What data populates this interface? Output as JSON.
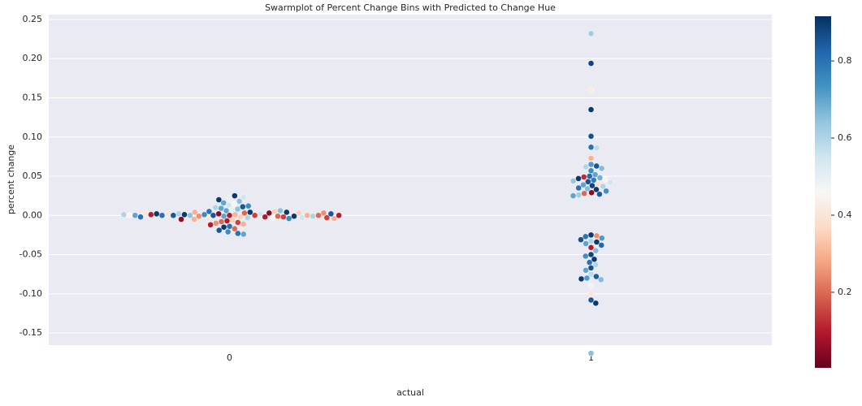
{
  "chart_data": {
    "type": "swarm",
    "title": "Swarmplot of Percent Change Bins with Predicted to Change Hue",
    "x_label": "actual",
    "y_label": "percent change",
    "categories": [
      "0",
      "1"
    ],
    "groups": [
      {
        "values": [
          0.0,
          0.001,
          -0.001,
          0.002,
          -0.002,
          0.0,
          0.003,
          -0.003,
          0.004,
          -0.004,
          0.0,
          0.001,
          -0.001,
          0.002,
          -0.002,
          0.005,
          -0.005,
          0.0,
          0.003,
          -0.003,
          0.001,
          -0.001,
          0.006,
          -0.006,
          0.002,
          -0.002,
          0.0,
          0.004,
          -0.004,
          0.007,
          -0.007,
          0.001,
          -0.001,
          0.008,
          -0.008,
          0.0,
          0.003,
          -0.003,
          0.009,
          -0.009,
          0.002,
          0.01,
          -0.01,
          0.011,
          -0.011,
          0.012,
          -0.012,
          0.013,
          -0.014,
          0.015,
          -0.015,
          0.016,
          -0.017,
          0.018,
          -0.019,
          0.02,
          -0.021,
          0.022,
          -0.023,
          0.025,
          -0.024,
          0.023,
          0.0,
          0.001,
          -0.001,
          0.002,
          0.0,
          -0.002,
          0.005,
          -0.005,
          0.0,
          0.003,
          0.004,
          -0.003,
          0.006,
          0.0,
          0.002,
          -0.004,
          0.001,
          0.0
        ],
        "hue": [
          0.1,
          0.3,
          0.7,
          0.05,
          0.35,
          0.85,
          0.2,
          0.6,
          0.9,
          0.4,
          0.15,
          0.75,
          0.25,
          0.55,
          0.1,
          0.8,
          0.3,
          0.65,
          0.05,
          0.45,
          0.9,
          0.2,
          0.7,
          0.35,
          0.6,
          0.15,
          0.85,
          0.3,
          0.75,
          0.5,
          0.1,
          0.4,
          0.9,
          0.65,
          0.2,
          0.8,
          0.35,
          0.55,
          0.7,
          0.15,
          0.9,
          0.6,
          0.25,
          0.85,
          0.3,
          0.75,
          0.1,
          0.55,
          0.8,
          0.45,
          0.9,
          0.7,
          0.2,
          0.65,
          0.85,
          0.9,
          0.75,
          0.5,
          0.8,
          0.9,
          0.7,
          0.55,
          0.3,
          0.1,
          0.6,
          0.4,
          0.2,
          0.8,
          0.35,
          0.05,
          0.7,
          0.25,
          0.9,
          0.15,
          0.65,
          0.45,
          0.85,
          0.3,
          0.6,
          0.1
        ]
      },
      {
        "values": [
          0.232,
          0.194,
          0.16,
          0.135,
          0.101,
          0.087,
          0.086,
          0.073,
          0.065,
          0.063,
          0.062,
          0.06,
          0.057,
          0.052,
          0.05,
          0.049,
          0.048,
          0.047,
          0.046,
          0.045,
          0.044,
          0.043,
          0.042,
          0.04,
          0.039,
          0.038,
          0.037,
          0.035,
          0.034,
          0.033,
          0.031,
          0.029,
          0.028,
          0.027,
          0.026,
          0.025,
          -0.025,
          -0.026,
          -0.027,
          -0.029,
          -0.031,
          -0.033,
          -0.034,
          -0.036,
          -0.038,
          -0.041,
          -0.045,
          -0.05,
          -0.052,
          -0.056,
          -0.06,
          -0.063,
          -0.067,
          -0.07,
          -0.075,
          -0.078,
          -0.08,
          -0.081,
          -0.082,
          -0.09,
          -0.1,
          -0.108,
          -0.112,
          -0.176
        ],
        "hue": [
          0.62,
          0.88,
          0.42,
          0.9,
          0.86,
          0.8,
          0.58,
          0.3,
          0.72,
          0.85,
          0.6,
          0.66,
          0.75,
          0.7,
          0.82,
          0.12,
          0.68,
          0.9,
          0.45,
          0.78,
          0.64,
          0.86,
          0.55,
          0.38,
          0.7,
          0.88,
          0.6,
          0.8,
          0.66,
          0.9,
          0.74,
          0.05,
          0.2,
          0.84,
          0.62,
          0.7,
          0.9,
          0.25,
          0.8,
          0.72,
          0.86,
          0.6,
          0.9,
          0.7,
          0.82,
          0.1,
          0.66,
          0.88,
          0.74,
          0.9,
          0.8,
          0.6,
          0.86,
          0.7,
          0.58,
          0.84,
          0.72,
          0.9,
          0.66,
          0.48,
          0.4,
          0.85,
          0.9,
          0.65
        ]
      }
    ],
    "ylim": [
      -0.1655,
      0.2562
    ],
    "yticks": [
      {
        "value": -0.15,
        "label": "-0.15"
      },
      {
        "value": -0.1,
        "label": "-0.10"
      },
      {
        "value": -0.05,
        "label": "-0.05"
      },
      {
        "value": 0,
        "label": "0.00"
      },
      0.05,
      {
        "value": 0.1,
        "label": "0.10"
      },
      0.15,
      {
        "value": 0.2,
        "label": "0.20"
      },
      0.25
    ],
    "grid": true,
    "colormap": "RdBu",
    "clim": [
      0.004,
      0.916
    ],
    "cticks": [
      0.2,
      0.4,
      0.6,
      0.8
    ]
  }
}
